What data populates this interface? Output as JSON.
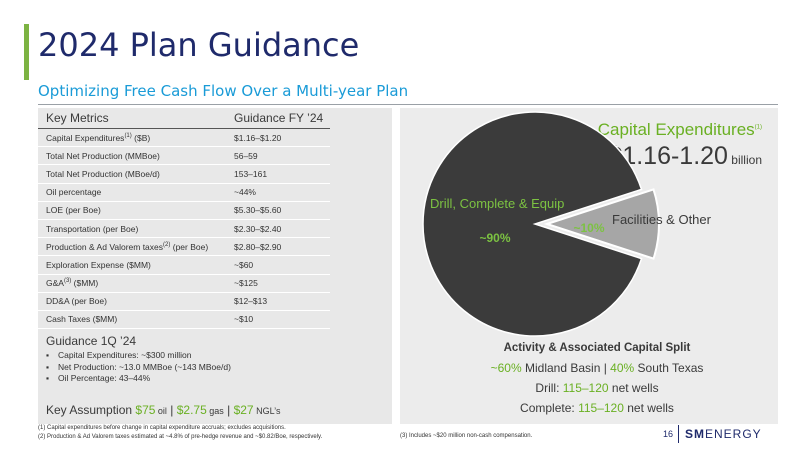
{
  "header": {
    "title": "2024 Plan Guidance",
    "subtitle": "Optimizing Free Cash Flow Over a Multi-year Plan"
  },
  "metrics_table": {
    "col_metric": "Key Metrics",
    "col_guidance": "Guidance FY ’24",
    "rows": [
      {
        "label": "Capital Expenditures",
        "sup": "(1)",
        "suffix": " ($B)",
        "value": "$1.16–$1.20"
      },
      {
        "label": "Total Net Production (MMBoe)",
        "sup": "",
        "suffix": "",
        "value": "56–59"
      },
      {
        "label": "Total Net Production (MBoe/d)",
        "sup": "",
        "suffix": "",
        "value": "153–161"
      },
      {
        "label": "Oil percentage",
        "sup": "",
        "suffix": "",
        "value": "~44%"
      },
      {
        "label": "LOE (per Boe)",
        "sup": "",
        "suffix": "",
        "value": "$5.30–$5.60"
      },
      {
        "label": "Transportation (per Boe)",
        "sup": "",
        "suffix": "",
        "value": "$2.30–$2.40"
      },
      {
        "label": "Production & Ad Valorem taxes",
        "sup": "(2)",
        "suffix": " (per Boe)",
        "value": "$2.80–$2.90"
      },
      {
        "label": "Exploration Expense ($MM)",
        "sup": "",
        "suffix": "",
        "value": "~$60"
      },
      {
        "label": "G&A",
        "sup": "(3)",
        "suffix": " ($MM)",
        "value": "~$125"
      },
      {
        "label": "DD&A (per Boe)",
        "sup": "",
        "suffix": "",
        "value": "$12–$13"
      },
      {
        "label": "Cash Taxes ($MM)",
        "sup": "",
        "suffix": "",
        "value": "~$10"
      }
    ]
  },
  "guidance_1q": {
    "title": "Guidance 1Q ’24",
    "items": [
      "Capital Expenditures: ~$300 million",
      "Net Production: ~13.0 MMBoe (~143 MBoe/d)",
      "Oil Percentage: 43–44%"
    ]
  },
  "key_assumption": {
    "label": "Key Assumption",
    "oil_value": "$75",
    "oil_unit": " oil",
    "gas_value": "$2.75",
    "gas_unit": " gas",
    "ngl_value": "$27",
    "ngl_unit": " NGL’s",
    "sep": " | "
  },
  "capex": {
    "title": "Capital Expenditures",
    "sup": "(1)",
    "value": "$1.16-1.20",
    "unit": " billion"
  },
  "pie": {
    "drill_label": "Drill, Complete & Equip",
    "drill_pct": "~90%",
    "facilities_label": "Facilities & Other",
    "facilities_pct": "~10%",
    "colors": {
      "drill": "#3b3b3b",
      "facilities": "#a6a6a6",
      "drill_text": "#7cc242"
    }
  },
  "chart_data": {
    "type": "pie",
    "categories": [
      "Drill, Complete & Equip",
      "Facilities & Other"
    ],
    "values": [
      90,
      10
    ]
  },
  "activity": {
    "heading": "Activity & Associated Capital Split",
    "midland_pct": "~60%",
    "midland_label": " Midland Basin",
    "divider": " | ",
    "south_pct": "40%",
    "south_label": " South Texas",
    "drill_label": "Drill: ",
    "drill_value": "115–120",
    "drill_unit": " net wells",
    "complete_label": "Complete: ",
    "complete_value": "115–120",
    "complete_unit": " net wells"
  },
  "footnotes": {
    "f1": "(1)    Capital expenditures before change in capital expenditure accruals; excludes acquisitions.",
    "f2": "(2)    Production & Ad Valorem taxes estimated at ~4.8% of pre-hedge revenue and ~$0.82/Boe, respectively.",
    "f3": "(3)    Includes ~$20 million non-cash compensation."
  },
  "footer": {
    "page_number": "16",
    "logo_bold": "SM",
    "logo_rest": "ENERGY"
  },
  "theme": {
    "title_color": "#1f2a6b",
    "subtitle_color": "#1a9bd7",
    "accent_green": "#6ab023"
  }
}
